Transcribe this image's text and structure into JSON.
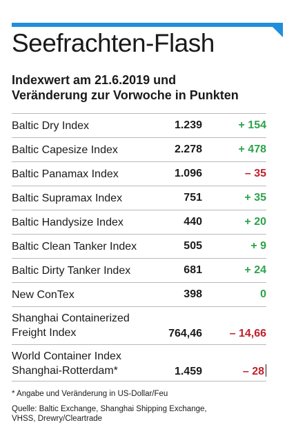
{
  "header": {
    "title": "Seefrachten-Flash",
    "subtitle_line1": "Indexwert am 21.6.2019 und",
    "subtitle_line2": "Veränderung zur Vorwoche in Punkten",
    "accent_color": "#1f8fdc"
  },
  "table": {
    "rows": [
      {
        "name_line1": "Baltic Dry Index",
        "name_line2": "",
        "value": "1.239",
        "change": "+ 154",
        "direction": "positive"
      },
      {
        "name_line1": "Baltic Capesize Index",
        "name_line2": "",
        "value": "2.278",
        "change": "+ 478",
        "direction": "positive"
      },
      {
        "name_line1": "Baltic Panamax Index",
        "name_line2": "",
        "value": "1.096",
        "change": "– 35",
        "direction": "negative"
      },
      {
        "name_line1": "Baltic Supramax Index",
        "name_line2": "",
        "value": "751",
        "change": "+ 35",
        "direction": "positive"
      },
      {
        "name_line1": "Baltic Handysize Index",
        "name_line2": "",
        "value": "440",
        "change": "+ 20",
        "direction": "positive"
      },
      {
        "name_line1": "Baltic Clean Tanker Index",
        "name_line2": "",
        "value": "505",
        "change": "+ 9",
        "direction": "positive"
      },
      {
        "name_line1": "Baltic Dirty Tanker Index",
        "name_line2": "",
        "value": "681",
        "change": "+ 24",
        "direction": "positive"
      },
      {
        "name_line1": "New ConTex",
        "name_line2": "",
        "value": "398",
        "change": "0",
        "direction": "zero"
      },
      {
        "name_line1": "Shanghai Containerized",
        "name_line2": "Freight Index",
        "value": "764,46",
        "change": "– 14,66",
        "direction": "negative"
      },
      {
        "name_line1": "World Container Index",
        "name_line2": "Shanghai-Rotterdam*",
        "value": "1.459",
        "change": "– 28",
        "direction": "negative"
      }
    ],
    "colors": {
      "positive": "#2ca24a",
      "negative": "#c0202a"
    }
  },
  "footer": {
    "footnote": "* Angabe und Veränderung in US-Dollar/Feu",
    "sources_line1": "Quelle: Baltic Exchange, Shanghai Shipping Exchange,",
    "sources_line2": "VHSS, Drewry/Cleartrade"
  }
}
